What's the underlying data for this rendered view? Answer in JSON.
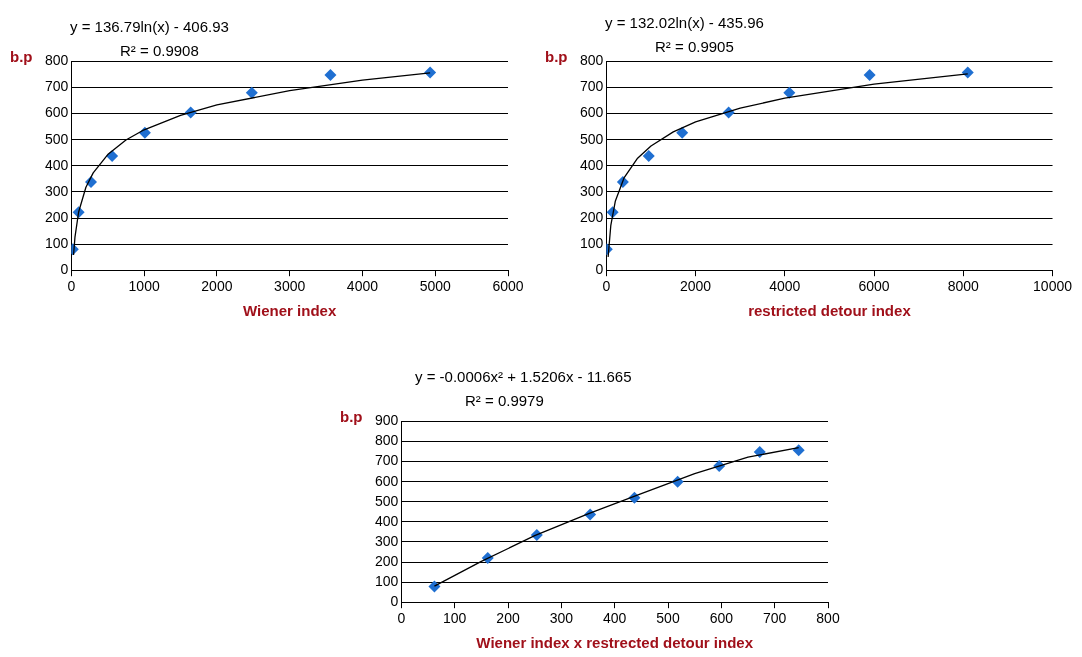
{
  "chart_data": [
    {
      "type": "scatter",
      "ylabel": "b.p",
      "xlabel": "Wiener index",
      "marker": "diamond",
      "grid": "y",
      "annotations": [
        "y = 136.79ln(x) - 406.93",
        "R² = 0.9908"
      ],
      "xlim": [
        0,
        6000
      ],
      "xticks": [
        0,
        1000,
        2000,
        3000,
        4000,
        5000,
        6000
      ],
      "ylim": [
        0,
        800
      ],
      "yticks": [
        0,
        100,
        200,
        300,
        400,
        500,
        600,
        700,
        800
      ],
      "series": [
        {
          "color": "#1f6fd1",
          "x": [
            20,
            100,
            270,
            560,
            1010,
            1640,
            2480,
            3560,
            4930
          ],
          "values": [
            80,
            222,
            338,
            438,
            527,
            604,
            680,
            748,
            757
          ]
        },
        {
          "type": "line",
          "color": "#000000",
          "marker": "none",
          "line_style": "solid",
          "x": [
            30,
            50,
            100,
            200,
            300,
            500,
            750,
            1000,
            1500,
            2000,
            3000,
            4000,
            4930
          ],
          "values": [
            58,
            128,
            223,
            318,
            373,
            443,
            499,
            538,
            593,
            633,
            688,
            728,
            756
          ]
        }
      ]
    },
    {
      "type": "scatter",
      "ylabel": "b.p",
      "xlabel": "restricted detour index",
      "marker": "diamond",
      "grid": "y",
      "annotations": [
        "y = 132.02ln(x) - 435.96",
        "R² = 0.9905"
      ],
      "xlim": [
        0,
        10000
      ],
      "xticks": [
        0,
        2000,
        4000,
        6000,
        8000,
        10000
      ],
      "ylim": [
        0,
        800
      ],
      "yticks": [
        0,
        100,
        200,
        300,
        400,
        500,
        600,
        700,
        800
      ],
      "series": [
        {
          "color": "#1f6fd1",
          "x": [
            10,
            140,
            370,
            950,
            1700,
            2740,
            4100,
            5900,
            8100
          ],
          "values": [
            80,
            222,
            338,
            438,
            527,
            604,
            680,
            748,
            757
          ]
        },
        {
          "type": "line",
          "color": "#000000",
          "marker": "none",
          "line_style": "solid",
          "x": [
            40,
            100,
            200,
            400,
            700,
            1000,
            1500,
            2000,
            3000,
            4000,
            6000,
            8100
          ],
          "values": [
            51,
            172,
            264,
            355,
            429,
            476,
            530,
            568,
            621,
            659,
            713,
            752
          ]
        }
      ]
    },
    {
      "type": "scatter",
      "ylabel": "b.p",
      "xlabel": "Wiener index x restrected detour index",
      "marker": "diamond",
      "grid": "y",
      "annotations": [
        "y = -0.0006x² + 1.5206x - 11.665",
        "R² = 0.9979"
      ],
      "xlim": [
        0,
        800
      ],
      "xticks": [
        0,
        100,
        200,
        300,
        400,
        500,
        600,
        700,
        800
      ],
      "ylim": [
        0,
        900
      ],
      "yticks": [
        0,
        100,
        200,
        300,
        400,
        500,
        600,
        700,
        800,
        900
      ],
      "series": [
        {
          "color": "#1f6fd1",
          "x": [
            62,
            162,
            254,
            354,
            437,
            518,
            596,
            672,
            745
          ],
          "values": [
            78,
            220,
            335,
            437,
            520,
            600,
            678,
            748,
            757
          ]
        },
        {
          "type": "line",
          "color": "#000000",
          "marker": "none",
          "line_style": "solid",
          "x": [
            62,
            150,
            250,
            350,
            450,
            550,
            650,
            745
          ],
          "values": [
            80,
            203,
            331,
            440,
            540,
            640,
            722,
            770
          ]
        }
      ]
    }
  ]
}
